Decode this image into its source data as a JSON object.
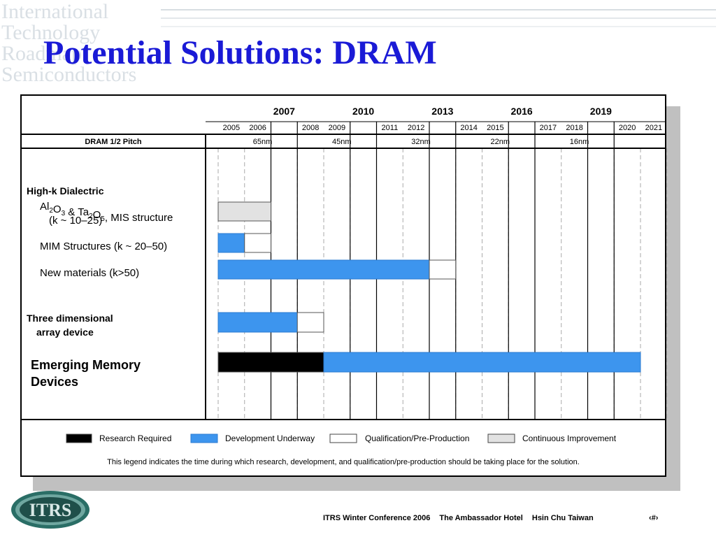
{
  "slide": {
    "title": "Potential Solutions:  DRAM",
    "background_logo_lines": [
      "International",
      "Technology",
      "Roadmap",
      "Semiconductors"
    ],
    "logo_text": "ITRS"
  },
  "footer": {
    "conference": "ITRS Winter Conference 2006",
    "venue": "The Ambassador Hotel",
    "location": "Hsin Chu  Taiwan",
    "page": "‹#›"
  },
  "chart_data": {
    "type": "gantt",
    "years_major": [
      "2007",
      "2010",
      "2013",
      "2016",
      "2019"
    ],
    "years_minor": [
      "2005",
      "2006",
      "2008",
      "2009",
      "2011",
      "2012",
      "2014",
      "2015",
      "2017",
      "2018",
      "2020",
      "2021"
    ],
    "pitch_label": "DRAM 1/2 Pitch",
    "pitch_values": [
      {
        "year": 2007,
        "label": "65nm"
      },
      {
        "year": 2010,
        "label": "45nm"
      },
      {
        "year": 2013,
        "label": "32nm"
      },
      {
        "year": 2016,
        "label": "22nm"
      },
      {
        "year": 2019,
        "label": "16nm"
      }
    ],
    "rows": [
      {
        "heading": "High-k Dialectric",
        "label": "Al2O3 & Ta2O5, MIS structure",
        "sublabel": "(k ~ 10–25)",
        "segments": [
          {
            "phase": "continuous",
            "start": 2005,
            "end": 2007
          }
        ]
      },
      {
        "label": "MIM Structures (k ~ 20–50)",
        "segments": [
          {
            "phase": "development",
            "start": 2005,
            "end": 2006
          },
          {
            "phase": "qualification",
            "start": 2006,
            "end": 2007
          }
        ]
      },
      {
        "label": "New materials (k>50)",
        "segments": [
          {
            "phase": "development",
            "start": 2005,
            "end": 2013
          },
          {
            "phase": "qualification",
            "start": 2013,
            "end": 2014
          }
        ]
      },
      {
        "heading": "Three dimensional",
        "label": "array device",
        "segments": [
          {
            "phase": "development",
            "start": 2005,
            "end": 2008
          },
          {
            "phase": "qualification",
            "start": 2008,
            "end": 2009
          }
        ]
      },
      {
        "heading": "Emerging Memory",
        "label": "Devices",
        "segments": [
          {
            "phase": "research",
            "start": 2005,
            "end": 2009
          },
          {
            "phase": "development",
            "start": 2009,
            "end": 2021
          }
        ]
      }
    ],
    "legend": [
      {
        "phase": "research",
        "label": "Research Required",
        "color": "#000000"
      },
      {
        "phase": "development",
        "label": "Development Underway",
        "color": "#3d95ee"
      },
      {
        "phase": "qualification",
        "label": "Qualification/Pre-Production",
        "color": "#ffffff"
      },
      {
        "phase": "continuous",
        "label": "Continuous Improvement",
        "color": "#e2e2e2"
      }
    ],
    "note": "This legend indicates the time during which research, development, and qualification/pre-production should be taking place for the solution."
  }
}
